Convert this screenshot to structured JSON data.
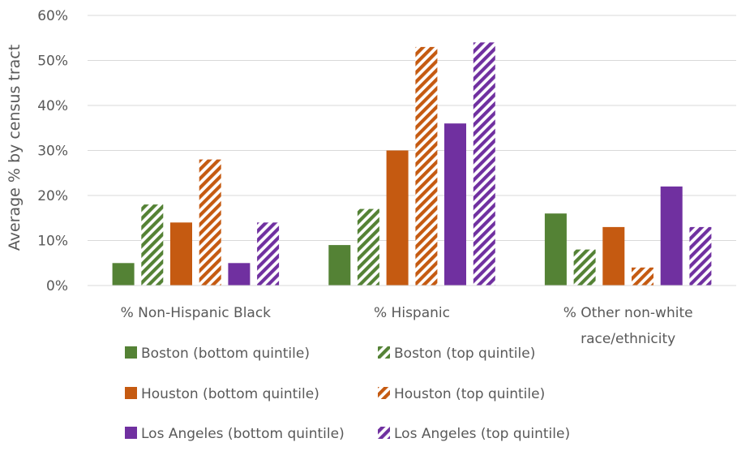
{
  "chart_data": {
    "type": "bar",
    "title": "",
    "xlabel": "",
    "ylabel": "Average % by census tract",
    "categories": [
      [
        "% Non-Hispanic Black"
      ],
      [
        "% Hispanic"
      ],
      [
        "% Other non-white",
        "race/ethnicity"
      ]
    ],
    "ylim": [
      0,
      60
    ],
    "yticks": [
      "0%",
      "10%",
      "20%",
      "30%",
      "40%",
      "50%",
      "60%"
    ],
    "grid": true,
    "legend_position": "bottom",
    "series": [
      {
        "name": "Boston (bottom quintile)",
        "values": [
          5,
          9,
          16
        ],
        "color": "#548235",
        "pattern": "solid"
      },
      {
        "name": "Boston (top quintile)",
        "values": [
          18,
          17,
          8
        ],
        "color": "#548235",
        "pattern": "hatched"
      },
      {
        "name": "Houston (bottom quintile)",
        "values": [
          14,
          30,
          13
        ],
        "color": "#C55A11",
        "pattern": "solid"
      },
      {
        "name": "Houston (top quintile)",
        "values": [
          28,
          53,
          4
        ],
        "color": "#C55A11",
        "pattern": "hatched"
      },
      {
        "name": "Los Angeles (bottom quintile)",
        "values": [
          5,
          36,
          22
        ],
        "color": "#7030A0",
        "pattern": "solid"
      },
      {
        "name": "Los Angeles (top quintile)",
        "values": [
          14,
          54,
          13
        ],
        "color": "#7030A0",
        "pattern": "hatched"
      }
    ]
  }
}
